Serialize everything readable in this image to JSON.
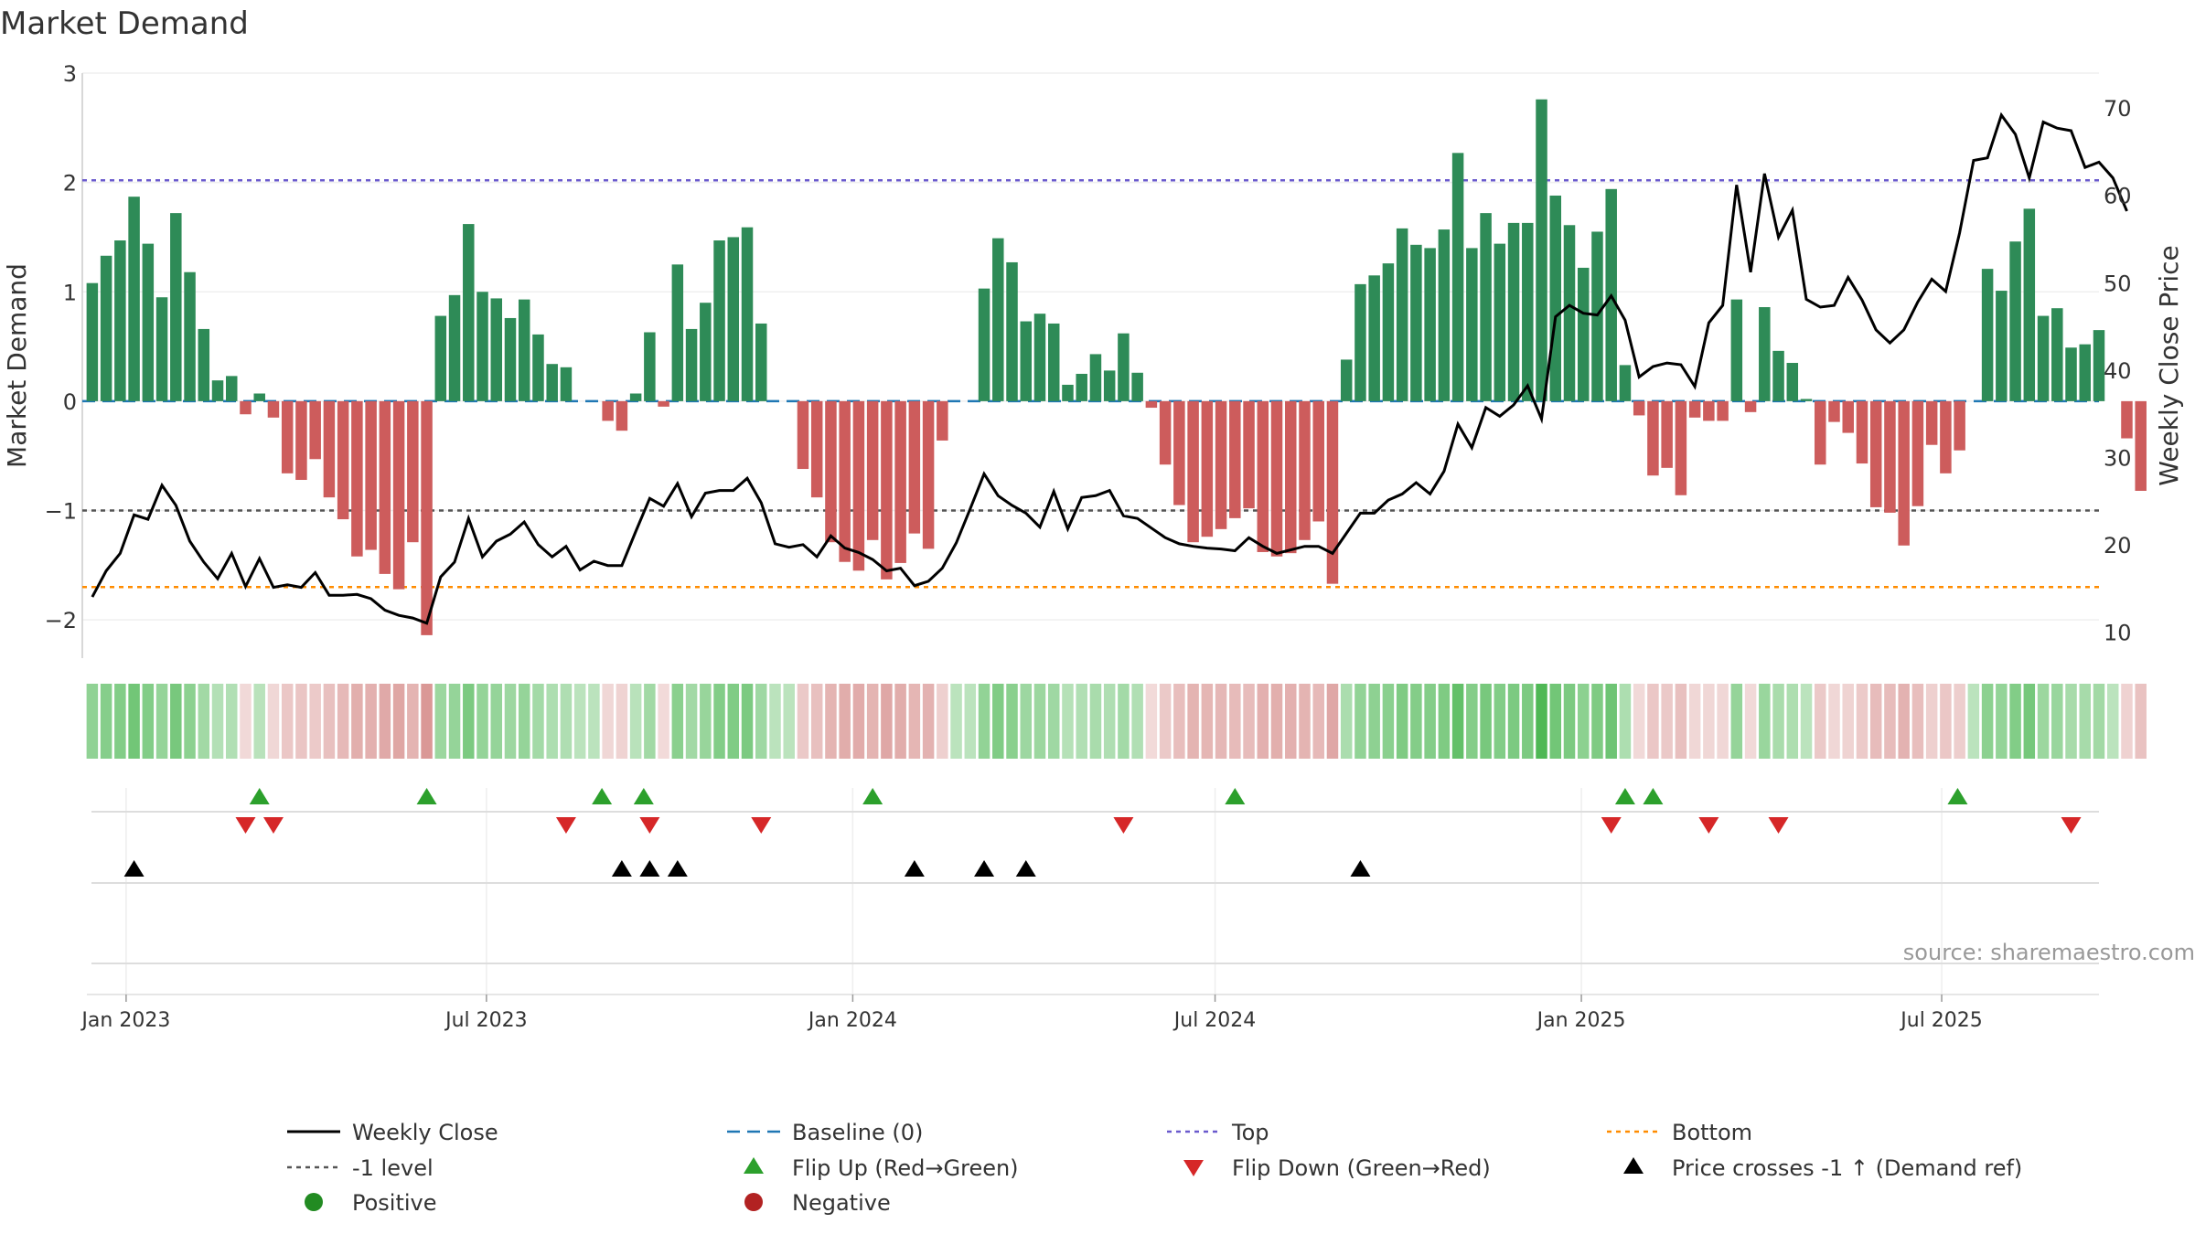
{
  "chart_data": {
    "type": "bar",
    "title": "Market Demand",
    "ylabel_left": "Market Demand",
    "ylabel_right": "Weekly Close Price",
    "source": "source: sharemaestro.com",
    "ylim_left": [
      -2.35,
      3.0
    ],
    "ylim_right": [
      7,
      74
    ],
    "yticks_left": [
      3,
      2,
      1,
      0,
      -1,
      -2
    ],
    "ytick_labels_left": [
      "3",
      "2",
      "1",
      "0",
      "−1",
      "−2"
    ],
    "yticks_right": [
      70,
      60,
      50,
      40,
      30,
      20,
      10
    ],
    "ytick_labels_right": [
      "70",
      "60",
      "50",
      "40",
      "30",
      "20",
      "10"
    ],
    "x_start_day": 0,
    "week_days": 7,
    "x_range_days": [
      -5,
      1008
    ],
    "x_ticks": [
      {
        "day": 17,
        "label": "Jan 2023"
      },
      {
        "day": 198,
        "label": "Jul 2023"
      },
      {
        "day": 382,
        "label": "Jan 2024"
      },
      {
        "day": 564,
        "label": "Jul 2024"
      },
      {
        "day": 748,
        "label": "Jan 2025"
      },
      {
        "day": 929,
        "label": "Jul 2025"
      }
    ],
    "levels": {
      "top": 2.02,
      "baseline": 0,
      "minus_one": -1,
      "bottom": -1.7
    },
    "demand": [
      1.08,
      1.33,
      1.47,
      1.87,
      1.44,
      0.95,
      1.72,
      1.18,
      0.66,
      0.19,
      0.23,
      -0.12,
      0.07,
      -0.15,
      -0.66,
      -0.72,
      -0.53,
      -0.88,
      -1.08,
      -1.42,
      -1.36,
      -1.58,
      -1.72,
      -1.29,
      -2.14,
      0.78,
      0.97,
      1.62,
      1.0,
      0.94,
      0.76,
      0.93,
      0.61,
      0.34,
      0.31,
      0.0,
      0.0,
      -0.18,
      -0.27,
      0.07,
      0.63,
      -0.05,
      1.25,
      0.66,
      0.9,
      1.47,
      1.5,
      1.59,
      0.71,
      0.0,
      0.0,
      -0.62,
      -0.88,
      -1.29,
      -1.47,
      -1.55,
      -1.27,
      -1.63,
      -1.48,
      -1.21,
      -1.35,
      -0.36,
      0.0,
      0.0,
      1.03,
      1.49,
      1.27,
      0.73,
      0.8,
      0.71,
      0.15,
      0.25,
      0.43,
      0.28,
      0.62,
      0.26,
      -0.06,
      -0.58,
      -0.95,
      -1.29,
      -1.24,
      -1.17,
      -1.07,
      -0.98,
      -1.38,
      -1.42,
      -1.39,
      -1.27,
      -1.1,
      -1.67,
      0.38,
      1.07,
      1.15,
      1.26,
      1.58,
      1.43,
      1.4,
      1.57,
      2.27,
      1.4,
      1.72,
      1.44,
      1.63,
      1.63,
      2.76,
      1.88,
      1.61,
      1.22,
      1.55,
      1.94,
      0.33,
      -0.13,
      -0.68,
      -0.61,
      -0.86,
      -0.15,
      -0.18,
      -0.18,
      0.93,
      -0.1,
      0.86,
      0.46,
      0.35,
      0.02,
      -0.58,
      -0.19,
      -0.29,
      -0.57,
      -0.97,
      -1.02,
      -1.32,
      -0.96,
      -0.4,
      -0.66,
      -0.45,
      0.0,
      1.21,
      1.01,
      1.46,
      1.76,
      0.78,
      0.85,
      0.49,
      0.52,
      0.65,
      0.0,
      -0.34,
      -0.82
    ],
    "close": [
      14.0,
      17.0,
      19.0,
      23.4,
      22.9,
      26.8,
      24.5,
      20.4,
      18.0,
      16.1,
      19.0,
      15.2,
      18.4,
      15.1,
      15.4,
      15.1,
      16.8,
      14.2,
      14.2,
      14.3,
      13.8,
      12.5,
      11.9,
      11.6,
      11.0,
      16.3,
      18.0,
      23.0,
      18.6,
      20.4,
      21.2,
      22.6,
      20.0,
      18.6,
      19.8,
      17.1,
      18.1,
      17.6,
      17.6,
      21.5,
      25.3,
      24.4,
      27.0,
      23.2,
      25.9,
      26.2,
      26.2,
      27.6,
      24.8,
      20.1,
      19.7,
      20.0,
      18.6,
      21.0,
      19.6,
      19.1,
      18.3,
      17.0,
      17.3,
      15.3,
      15.8,
      17.3,
      20.2,
      24.1,
      28.1,
      25.6,
      24.5,
      23.6,
      22.0,
      26.1,
      21.8,
      25.4,
      25.6,
      26.2,
      23.3,
      23.0,
      21.9,
      20.8,
      20.1,
      19.8,
      19.6,
      19.5,
      19.3,
      20.8,
      19.8,
      19.0,
      19.4,
      19.8,
      19.8,
      19.0,
      21.3,
      23.6,
      23.6,
      25.1,
      25.8,
      27.1,
      25.8,
      28.4,
      33.8,
      31.1,
      35.7,
      34.7,
      36.0,
      38.2,
      34.4,
      46.1,
      47.4,
      46.5,
      46.3,
      48.5,
      45.7,
      39.2,
      40.4,
      40.8,
      40.6,
      38.1,
      45.4,
      47.4,
      61.2,
      51.2,
      62.5,
      55.2,
      58.3,
      48.1,
      47.2,
      47.4,
      50.6,
      48.0,
      44.6,
      43.1,
      44.6,
      47.8,
      50.4,
      49.0,
      55.7,
      64.0,
      64.3,
      69.2,
      67.0,
      62.0,
      68.4,
      67.7,
      67.4,
      63.2,
      63.8,
      62.0,
      58.2
    ],
    "flip_up_days": [
      84,
      168,
      256,
      277,
      392,
      574,
      770,
      784,
      937
    ],
    "flip_down_days": [
      77,
      91,
      238,
      280,
      336,
      518,
      763,
      812,
      847,
      994
    ],
    "price_cross_days": [
      21,
      266,
      280,
      294,
      413,
      448,
      469,
      637
    ],
    "legend": [
      {
        "key": "weekly_close",
        "label": "Weekly Close"
      },
      {
        "key": "baseline",
        "label": "Baseline (0)"
      },
      {
        "key": "top",
        "label": "Top"
      },
      {
        "key": "bottom",
        "label": "Bottom"
      },
      {
        "key": "minus_one",
        "label": "-1 level"
      },
      {
        "key": "flip_up",
        "label": "Flip Up (Red→Green)"
      },
      {
        "key": "flip_down",
        "label": "Flip Down (Green→Red)"
      },
      {
        "key": "price_cross",
        "label": "Price crosses -1 ↑ (Demand ref)"
      },
      {
        "key": "positive",
        "label": "Positive"
      },
      {
        "key": "negative",
        "label": "Negative"
      }
    ],
    "colors": {
      "positive": "#2e8b57",
      "negative": "#cd5c5c",
      "close": "#000000",
      "baseline": "#1f77b4",
      "top": "#6a5acd",
      "bottom": "#ff8c00",
      "minus_one": "#555555",
      "flip_up": "#2ca02c",
      "flip_down": "#d62728",
      "price_cross": "#000000",
      "positive_dot": "#228b22",
      "negative_dot": "#b22222"
    }
  }
}
